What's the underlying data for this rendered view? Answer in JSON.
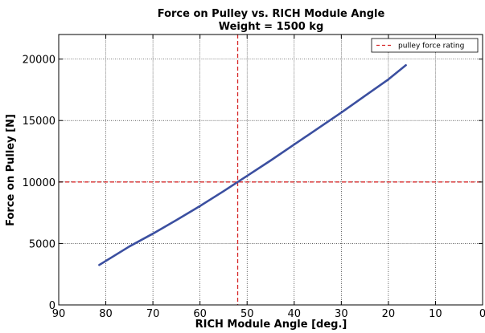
{
  "chart_data": {
    "type": "line",
    "title": "Force on Pulley vs. RICH Module Angle",
    "subtitle": "Weight = 1500 kg",
    "xlabel": "RICH Module Angle [deg.]",
    "ylabel": "Force on Pulley [N]",
    "xlim": [
      90,
      0
    ],
    "ylim": [
      0,
      22000
    ],
    "x_ticks": [
      90,
      80,
      70,
      60,
      50,
      40,
      30,
      20,
      10,
      0
    ],
    "x_tick_labels": [
      "90",
      "80",
      "70",
      "60",
      "50",
      "40",
      "30",
      "20",
      "10",
      "0"
    ],
    "y_ticks": [
      0,
      5000,
      10000,
      15000,
      20000
    ],
    "y_tick_labels": [
      "0",
      "5000",
      "10000",
      "15000",
      "20000"
    ],
    "grid": true,
    "legend_position": "top-right",
    "series": [
      {
        "color": "#3b4fa0",
        "x": [
          81.4,
          75,
          70,
          65,
          60,
          55,
          52,
          50,
          45,
          40,
          35,
          30,
          25,
          20,
          16.3
        ],
        "y": [
          3250,
          4750,
          5800,
          6900,
          8050,
          9250,
          10000,
          10500,
          11750,
          13050,
          14350,
          15650,
          17000,
          18350,
          19500
        ]
      }
    ],
    "reference_lines": [
      {
        "orientation": "horizontal",
        "value": 10000,
        "color": "#d62728",
        "style": "dashed"
      },
      {
        "orientation": "vertical",
        "value": 52,
        "color": "#d62728",
        "style": "dashed"
      }
    ],
    "legend": [
      {
        "label": "pulley force rating",
        "color": "#d62728",
        "style": "dashed"
      }
    ]
  }
}
